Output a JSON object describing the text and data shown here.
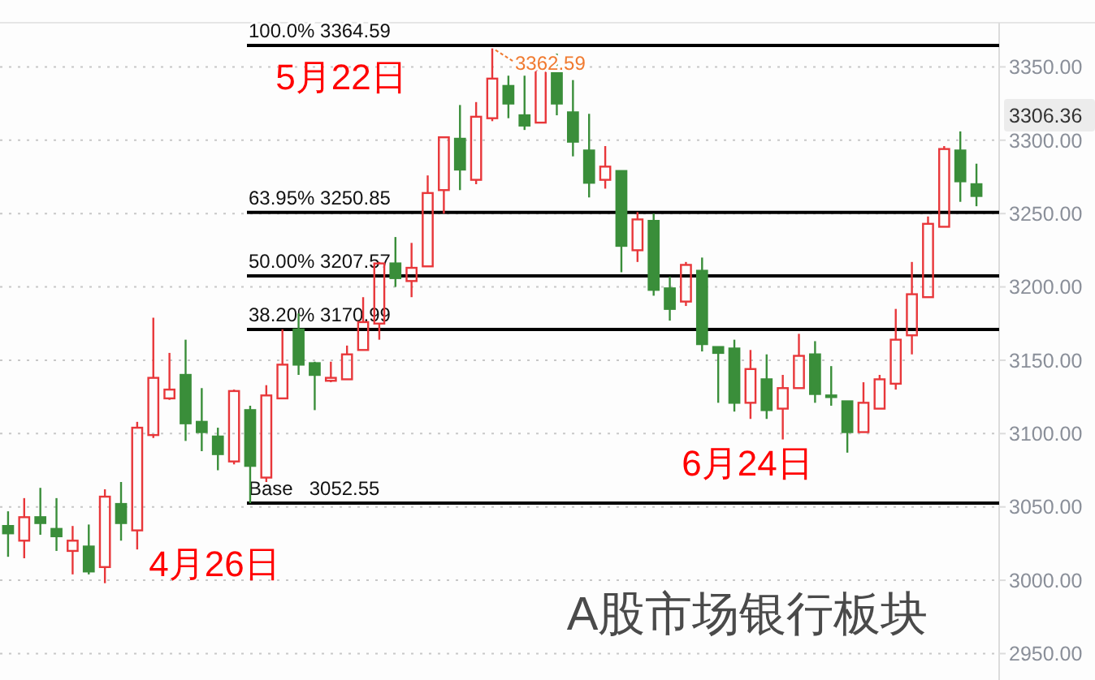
{
  "chart_data": {
    "type": "candlestick",
    "title": "A股市场银行板块",
    "categories": [
      null,
      null,
      null,
      null,
      null,
      null,
      null,
      null,
      null,
      null,
      null,
      null,
      null,
      null,
      null,
      null,
      null,
      null,
      null,
      null,
      null,
      null,
      null,
      null,
      null,
      null,
      null,
      null,
      null,
      null,
      null,
      null,
      null,
      null,
      null,
      null,
      null,
      null,
      null,
      null,
      null,
      null,
      null,
      null,
      null,
      null,
      null,
      null,
      null,
      null,
      null,
      null,
      null,
      null,
      null,
      null,
      null,
      null,
      null,
      null,
      null
    ],
    "ohlc": [
      [
        3037,
        3047,
        3016,
        3032
      ],
      [
        3027,
        3056,
        3015,
        3043
      ],
      [
        3043,
        3063,
        3031,
        3039
      ],
      [
        3035,
        3056,
        3020,
        3030
      ],
      [
        3020,
        3037,
        3004,
        3027
      ],
      [
        3023,
        3038,
        3004,
        3006
      ],
      [
        3009,
        3062,
        2998,
        3057
      ],
      [
        3052,
        3067,
        3027,
        3039
      ],
      [
        3034,
        3108,
        3021,
        3104
      ],
      [
        3099,
        3179,
        3097,
        3138
      ],
      [
        3124,
        3155,
        3123,
        3130
      ],
      [
        3140,
        3164,
        3095,
        3107
      ],
      [
        3108,
        3131,
        3088,
        3101
      ],
      [
        3098,
        3104,
        3075,
        3086
      ],
      [
        3081,
        3130,
        3079,
        3129
      ],
      [
        3116,
        3119,
        3052.55,
        3078
      ],
      [
        3070,
        3133,
        3067,
        3126
      ],
      [
        3124,
        3171,
        3124,
        3147
      ],
      [
        3171,
        3182,
        3140,
        3147
      ],
      [
        3148,
        3149,
        3116,
        3140
      ],
      [
        3136,
        3149,
        3135,
        3138
      ],
      [
        3137,
        3160,
        3137,
        3154
      ],
      [
        3157,
        3193,
        3157,
        3176
      ],
      [
        3175,
        3217,
        3164,
        3216
      ],
      [
        3216,
        3234,
        3200,
        3206
      ],
      [
        3204,
        3230,
        3193,
        3213
      ],
      [
        3214,
        3276,
        3214,
        3264
      ],
      [
        3266,
        3302,
        3250,
        3302
      ],
      [
        3301,
        3324,
        3266,
        3280
      ],
      [
        3273,
        3326,
        3270,
        3316
      ],
      [
        3315,
        3362.59,
        3313,
        3342
      ],
      [
        3337,
        3344,
        3315,
        3325
      ],
      [
        3317,
        3344,
        3307,
        3310
      ],
      [
        3312,
        3357,
        3312,
        3348
      ],
      [
        3348,
        3359,
        3317,
        3325
      ],
      [
        3319,
        3341,
        3289,
        3299
      ],
      [
        3293,
        3318,
        3261,
        3271
      ],
      [
        3273,
        3296,
        3267,
        3282
      ],
      [
        3279,
        3279,
        3210,
        3228
      ],
      [
        3225,
        3251,
        3217,
        3246
      ],
      [
        3245,
        3250,
        3194,
        3198
      ],
      [
        3199,
        3207,
        3177,
        3185
      ],
      [
        3190,
        3217,
        3187,
        3215
      ],
      [
        3211,
        3220,
        3156,
        3161
      ],
      [
        3159,
        3159,
        3121,
        3155
      ],
      [
        3158,
        3164,
        3115,
        3121
      ],
      [
        3121,
        3157,
        3110,
        3144
      ],
      [
        3137,
        3154,
        3110,
        3116
      ],
      [
        3117,
        3140,
        3096,
        3131
      ],
      [
        3131,
        3168,
        3131,
        3153
      ],
      [
        3154,
        3163,
        3121,
        3127
      ],
      [
        3126,
        3146,
        3119,
        3125
      ],
      [
        3122,
        3122,
        3087,
        3101
      ],
      [
        3101,
        3135,
        3101,
        3121
      ],
      [
        3117,
        3140,
        3117,
        3137
      ],
      [
        3134,
        3185,
        3130,
        3164
      ],
      [
        3167,
        3217,
        3154,
        3195
      ],
      [
        3193,
        3248,
        3193,
        3243
      ],
      [
        3241,
        3296,
        3241,
        3294
      ],
      [
        3293,
        3306,
        3258,
        3272
      ],
      [
        3270,
        3284,
        3255,
        3262
      ]
    ],
    "colors": [
      "#3a8e3a",
      "#e8373a",
      "#3a8e3a",
      "#3a8e3a",
      "#e8373a",
      "#3a8e3a",
      "#e8373a",
      "#3a8e3a",
      "#e8373a",
      "#e8373a",
      "#e8373a",
      "#3a8e3a",
      "#3a8e3a",
      "#3a8e3a",
      "#e8373a",
      "#3a8e3a",
      "#e8373a",
      "#e8373a",
      "#3a8e3a",
      "#3a8e3a",
      "#e8373a",
      "#e8373a",
      "#e8373a",
      "#e8373a",
      "#3a8e3a",
      "#e8373a",
      "#e8373a",
      "#e8373a",
      "#3a8e3a",
      "#e8373a",
      "#e8373a",
      "#3a8e3a",
      "#3a8e3a",
      "#e8373a",
      "#3a8e3a",
      "#3a8e3a",
      "#3a8e3a",
      "#e8373a",
      "#3a8e3a",
      "#e8373a",
      "#3a8e3a",
      "#3a8e3a",
      "#e8373a",
      "#3a8e3a",
      "#3a8e3a",
      "#3a8e3a",
      "#e8373a",
      "#3a8e3a",
      "#e8373a",
      "#e8373a",
      "#3a8e3a",
      "#3a8e3a",
      "#3a8e3a",
      "#e8373a",
      "#e8373a",
      "#e8373a",
      "#e8373a",
      "#e8373a",
      "#e8373a",
      "#3a8e3a",
      "#3a8e3a"
    ],
    "ylim": [
      2932,
      3379
    ],
    "yticks": [
      {
        "value": 2950,
        "label": "2950.00"
      },
      {
        "value": 3000,
        "label": "3000.00"
      },
      {
        "value": 3050,
        "label": "3050.00"
      },
      {
        "value": 3100,
        "label": "3100.00"
      },
      {
        "value": 3150,
        "label": "3150.00"
      },
      {
        "value": 3200,
        "label": "3200.00"
      },
      {
        "value": 3250,
        "label": "3250.00"
      },
      {
        "value": 3300,
        "label": "3300.00"
      },
      {
        "value": 3350,
        "label": "3350.00"
      }
    ],
    "grid": "y",
    "ref_lines": [
      {
        "axis": "y",
        "value": 3364.59,
        "label": "100.0% 3364.59",
        "color": "#000000"
      },
      {
        "axis": "y",
        "value": 3250.85,
        "label": "63.95% 3250.85",
        "color": "#000000"
      },
      {
        "axis": "y",
        "value": 3207.57,
        "label": "50.00% 3207.57",
        "color": "#000000"
      },
      {
        "axis": "y",
        "value": 3170.99,
        "label": "38.20% 3170.99",
        "color": "#000000"
      },
      {
        "axis": "y",
        "value": 3052.55,
        "label": "Base   3052.55",
        "color": "#000000"
      }
    ],
    "annotations": [
      {
        "text": "3362.59",
        "y": 3362.59
      },
      "3306.36",
      "5月22日",
      "4月26日",
      "6月24日"
    ]
  }
}
